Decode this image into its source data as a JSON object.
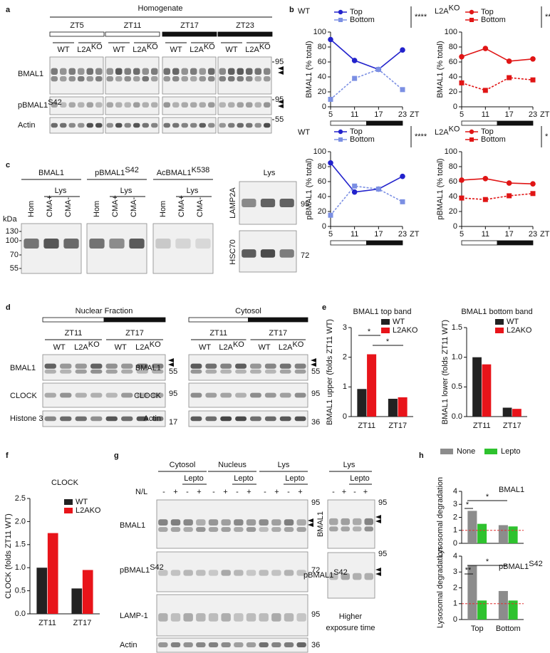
{
  "text": {
    "panel_letters": [
      "a",
      "b",
      "c",
      "d",
      "e",
      "f",
      "g",
      "h"
    ],
    "geno": {
      "wt": "WT",
      "l2a": "L2A",
      "ko": "KO"
    },
    "a": {
      "title": "Homogenate",
      "zt": [
        "ZT5",
        "ZT11",
        "ZT17",
        "ZT23"
      ],
      "rows": [
        "BMAL1",
        "pBMAL1",
        "Actin"
      ],
      "sup": "S42",
      "markers": [
        "95",
        "95",
        "55"
      ]
    },
    "c": {
      "heads": [
        "BMAL1",
        "pBMAL1",
        "AcBMAL1"
      ],
      "sups": [
        "S42",
        "K538"
      ],
      "lys": "Lys",
      "lanes": [
        "Hom",
        "CMA+",
        "CMA-"
      ],
      "kda": "kDa",
      "ladder": [
        "130",
        "100",
        "70",
        "55"
      ],
      "right_rows": [
        "LAMP2A",
        "HSC70"
      ],
      "right_markers": [
        "95",
        "72"
      ]
    },
    "d": {
      "heads": [
        "Nuclear Fraction",
        "Cytosol"
      ],
      "zt": [
        "ZT11",
        "ZT17"
      ],
      "rows_left": [
        "BMAL1",
        "CLOCK",
        "Histone 3"
      ],
      "rows_right": [
        "BMAL1",
        "CLOCK",
        "Actin"
      ],
      "markers_left": [
        "55",
        "95",
        "17"
      ],
      "markers_right": [
        "55",
        "95",
        "36"
      ]
    },
    "g": {
      "groups": [
        "Cytosol",
        "Nucleus",
        "Lys"
      ],
      "lepto": "Lepto",
      "nl": "N/L",
      "signs": [
        "-",
        "+"
      ],
      "rows": [
        "BMAL1",
        "pBMAL1",
        "LAMP-1",
        "Actin"
      ],
      "sup": "S42",
      "markers": [
        "95",
        "72",
        "95",
        "36"
      ],
      "right_head": "Lys",
      "right_rows": [
        "BMAL1",
        "pBMAL1"
      ],
      "right_markers": [
        "95",
        "95"
      ],
      "caption": [
        "Higher",
        "exposure time"
      ]
    }
  },
  "chart_data": [
    {
      "type": "line",
      "title": "WT",
      "ylabel": "BMAL1 (% total)",
      "xlabel": "ZT",
      "x": [
        5,
        11,
        17,
        23
      ],
      "xlim": [
        5,
        23
      ],
      "xticks": [
        5,
        11,
        17,
        23
      ],
      "ylim": [
        0,
        100
      ],
      "yticks": [
        0,
        20,
        40,
        60,
        80,
        100
      ],
      "significance": "****",
      "series": [
        {
          "name": "Top",
          "color": "#2222cc",
          "marker": "circle",
          "values": [
            90,
            62,
            50,
            76
          ]
        },
        {
          "name": "Bottom",
          "color": "#7b8fe3",
          "marker": "square",
          "values": [
            10,
            38,
            50,
            23
          ]
        }
      ]
    },
    {
      "type": "line",
      "title": "L2A",
      "title_sup": "KO",
      "ylabel": "BMAL1 (% total)",
      "xlabel": "ZT",
      "x": [
        5,
        11,
        17,
        23
      ],
      "xlim": [
        5,
        23
      ],
      "xticks": [
        5,
        11,
        17,
        23
      ],
      "ylim": [
        0,
        100
      ],
      "yticks": [
        0,
        20,
        40,
        60,
        80,
        100
      ],
      "significance": "***",
      "series": [
        {
          "name": "Top",
          "color": "#e01515",
          "marker": "circle",
          "values": [
            67,
            78,
            61,
            64
          ]
        },
        {
          "name": "Bottom",
          "color": "#e01515",
          "marker": "square",
          "values": [
            32,
            22,
            39,
            36
          ]
        }
      ]
    },
    {
      "type": "line",
      "title": "WT",
      "ylabel": "pBMAL1 (% total)",
      "xlabel": "ZT",
      "x": [
        5,
        11,
        17,
        23
      ],
      "xlim": [
        5,
        23
      ],
      "xticks": [
        5,
        11,
        17,
        23
      ],
      "ylim": [
        0,
        100
      ],
      "yticks": [
        0,
        20,
        40,
        60,
        80,
        100
      ],
      "significance": "****",
      "series": [
        {
          "name": "Top",
          "color": "#2222cc",
          "marker": "circle",
          "values": [
            85,
            46,
            50,
            67
          ]
        },
        {
          "name": "Bottom",
          "color": "#7b8fe3",
          "marker": "square",
          "values": [
            15,
            54,
            50,
            33
          ]
        }
      ]
    },
    {
      "type": "line",
      "title": "L2A",
      "title_sup": "KO",
      "ylabel": "pBMAL1 (% total)",
      "xlabel": "ZT",
      "x": [
        5,
        11,
        17,
        23
      ],
      "xlim": [
        5,
        23
      ],
      "xticks": [
        5,
        11,
        17,
        23
      ],
      "ylim": [
        0,
        100
      ],
      "yticks": [
        0,
        20,
        40,
        60,
        80,
        100
      ],
      "significance": "*",
      "series": [
        {
          "name": "Top",
          "color": "#e01515",
          "marker": "circle",
          "values": [
            62,
            64,
            58,
            57
          ]
        },
        {
          "name": "Bottom",
          "color": "#e01515",
          "marker": "square",
          "values": [
            38,
            36,
            41,
            44
          ]
        }
      ]
    },
    {
      "type": "bar",
      "title": "BMAL1 top band",
      "ylabel": "BMAL1 upper (folds ZT11 WT)",
      "categories": [
        "ZT11",
        "ZT17"
      ],
      "ylim": [
        0,
        3
      ],
      "yticks": [
        0,
        1,
        2,
        3
      ],
      "annotations": [
        "*",
        "*"
      ],
      "series": [
        {
          "name": "WT",
          "color": "#222222",
          "values": [
            0.93,
            0.6
          ]
        },
        {
          "name": "L2AKO",
          "color": "#e8141a",
          "values": [
            2.1,
            0.65
          ]
        }
      ]
    },
    {
      "type": "bar",
      "title": "BMAL1 bottom band",
      "ylabel": "BMAL1 lower (folds ZT11 WT)",
      "categories": [
        "ZT11",
        "ZT17"
      ],
      "ylim": [
        0,
        1.5
      ],
      "yticks": [
        {
          "value": 0,
          "label": "0.0"
        },
        0.5,
        {
          "value": 1,
          "label": "1.0"
        },
        1.5
      ],
      "series": [
        {
          "name": "WT",
          "color": "#222222",
          "values": [
            1.0,
            0.15
          ]
        },
        {
          "name": "L2AKO",
          "color": "#e8141a",
          "values": [
            0.88,
            0.13
          ]
        }
      ]
    },
    {
      "type": "bar",
      "title": "CLOCK",
      "ylabel": "CLOCK (folds ZT11 WT)",
      "categories": [
        "ZT11",
        "ZT17"
      ],
      "ylim": [
        0,
        2.5
      ],
      "yticks": [
        {
          "value": 0,
          "label": "0.0"
        },
        0.5,
        {
          "value": 1,
          "label": "1.0"
        },
        1.5,
        {
          "value": 2,
          "label": "2.0"
        },
        2.5
      ],
      "series": [
        {
          "name": "WT",
          "color": "#222222",
          "values": [
            1.0,
            0.55
          ]
        },
        {
          "name": "L2AKO",
          "color": "#e8141a",
          "values": [
            1.75,
            0.95
          ]
        }
      ]
    },
    {
      "type": "bar",
      "title": "BMAL1",
      "ylabel": "Lysosomal degradation",
      "ylim": [
        0,
        4
      ],
      "yticks": [
        0,
        1,
        2,
        3,
        4
      ],
      "ref_line": 1,
      "annotations": [
        "*",
        "*"
      ],
      "series": [
        {
          "name": "None",
          "color": "#8c8c8c",
          "values": [
            2.5,
            1.4
          ]
        },
        {
          "name": "Lepto",
          "color": "#2ec22e",
          "values": [
            1.5,
            1.3
          ]
        }
      ]
    },
    {
      "type": "bar",
      "title": "pBMAL1",
      "title_sup": "S42",
      "ylabel": "Lysosomal degradation",
      "categories": [
        "Top",
        "Bottom"
      ],
      "ylim": [
        0,
        4
      ],
      "yticks": [
        0,
        1,
        2,
        3,
        4
      ],
      "ref_line": 1,
      "annotations": [
        "*",
        "**"
      ],
      "series": [
        {
          "color": "#8c8c8c",
          "values": [
            3.4,
            1.8
          ]
        },
        {
          "color": "#2ec22e",
          "values": [
            1.2,
            1.2
          ]
        }
      ]
    }
  ]
}
